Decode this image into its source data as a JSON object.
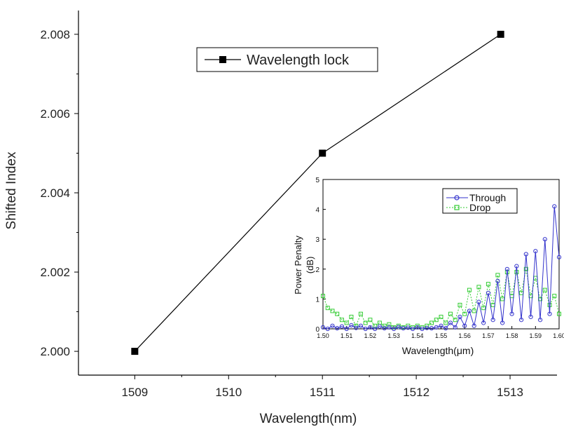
{
  "chart_data": [
    {
      "type": "line",
      "xlabel": "Wavelength(nm)",
      "ylabel": "Shifted Index",
      "xlim": [
        1508.4,
        1513.5
      ],
      "ylim": [
        1999.4,
        2008.6
      ],
      "xticks": [
        1509,
        1510,
        1511,
        1512,
        1513
      ],
      "yticks": [
        2000,
        2002,
        2004,
        2006,
        2008
      ],
      "ytick_labels": [
        "2.000",
        "2.002",
        "2.004",
        "2.006",
        "2.008"
      ],
      "x": [
        1509,
        1511,
        1512.9
      ],
      "series": [
        {
          "name": "Wavelength lock",
          "values": [
            2000,
            2005,
            2008
          ],
          "color": "#000000",
          "marker": "square"
        }
      ],
      "legend": "top-center",
      "grid": false
    },
    {
      "type": "line",
      "xlabel": "Wavelength(μm)",
      "ylabel": "Power Penalty\n(dB)",
      "xlim": [
        1.5,
        1.6
      ],
      "ylim": [
        0,
        5
      ],
      "xticks": [
        1.5,
        1.51,
        1.52,
        1.53,
        1.54,
        1.55,
        1.56,
        1.57,
        1.58,
        1.59,
        1.6
      ],
      "xtick_labels": [
        "1.50",
        "1.51",
        "1.52",
        "1.53",
        "1.54",
        "1.55",
        "1.56",
        "1.57",
        "1.58",
        "1.59",
        "1.60"
      ],
      "yticks": [
        0,
        1,
        2,
        3,
        4,
        5
      ],
      "x": [
        1.5,
        1.502,
        1.504,
        1.506,
        1.508,
        1.51,
        1.512,
        1.514,
        1.516,
        1.518,
        1.52,
        1.522,
        1.524,
        1.526,
        1.528,
        1.53,
        1.532,
        1.534,
        1.536,
        1.538,
        1.54,
        1.542,
        1.544,
        1.546,
        1.548,
        1.55,
        1.552,
        1.554,
        1.556,
        1.558,
        1.56,
        1.562,
        1.564,
        1.566,
        1.568,
        1.57,
        1.572,
        1.574,
        1.576,
        1.578,
        1.58,
        1.582,
        1.584,
        1.586,
        1.588,
        1.59,
        1.592,
        1.594,
        1.596,
        1.598,
        1.6
      ],
      "series": [
        {
          "name": "Through",
          "color": "#3333cc",
          "marker": "circle",
          "values": [
            0.05,
            0.0,
            0.1,
            0.02,
            0.08,
            0.0,
            0.12,
            0.03,
            0.1,
            0.0,
            0.05,
            0.0,
            0.08,
            0.02,
            0.05,
            0.0,
            0.06,
            0.02,
            0.04,
            0.0,
            0.05,
            0.0,
            0.03,
            0.02,
            0.05,
            0.1,
            0.02,
            0.2,
            0.05,
            0.4,
            0.1,
            0.6,
            0.1,
            0.9,
            0.2,
            1.2,
            0.3,
            1.6,
            0.2,
            2.0,
            0.5,
            2.1,
            0.3,
            2.5,
            0.4,
            2.6,
            0.3,
            3.0,
            0.5,
            4.1,
            2.4
          ]
        },
        {
          "name": "Drop",
          "color": "#33cc33",
          "marker": "square",
          "values": [
            1.1,
            0.7,
            0.6,
            0.5,
            0.3,
            0.2,
            0.4,
            0.1,
            0.5,
            0.2,
            0.3,
            0.1,
            0.2,
            0.1,
            0.15,
            0.05,
            0.1,
            0.05,
            0.1,
            0.05,
            0.1,
            0.05,
            0.1,
            0.2,
            0.3,
            0.4,
            0.2,
            0.5,
            0.3,
            0.8,
            0.5,
            1.3,
            0.6,
            1.4,
            0.7,
            1.5,
            0.8,
            1.8,
            1.0,
            1.9,
            1.1,
            1.9,
            1.2,
            2.0,
            1.1,
            1.7,
            1.0,
            1.3,
            0.8,
            1.1,
            0.5
          ]
        }
      ],
      "legend": "top-right",
      "grid": false
    }
  ]
}
